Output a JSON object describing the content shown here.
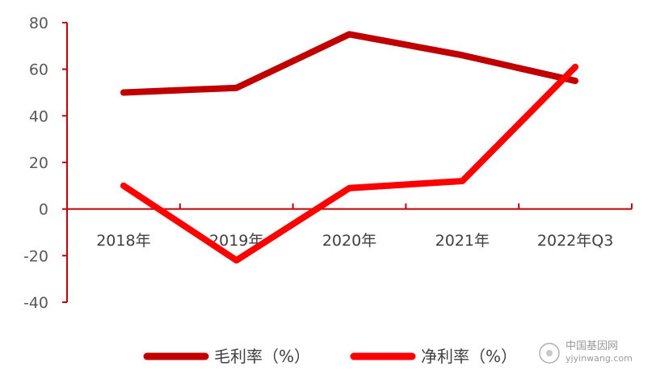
{
  "chart_data": {
    "type": "line",
    "categories": [
      "2018年",
      "2019年",
      "2020年",
      "2021年",
      "2022年Q3"
    ],
    "series": [
      {
        "name": "毛利率（%）",
        "values": [
          50,
          52,
          75,
          66,
          55
        ],
        "color": "#c00000"
      },
      {
        "name": "净利率（%）",
        "values": [
          10,
          -22,
          9,
          12,
          61
        ],
        "color": "#ff0000"
      }
    ],
    "yticks": [
      "80",
      "60",
      "40",
      "20",
      "0",
      "-20",
      "-40"
    ],
    "ylim": [
      -40,
      80
    ],
    "grid": false,
    "legend_position": "bottom",
    "axis_color": "#c00000"
  },
  "watermark": {
    "text": "中国基因网",
    "url": "yjyinwang.com"
  }
}
